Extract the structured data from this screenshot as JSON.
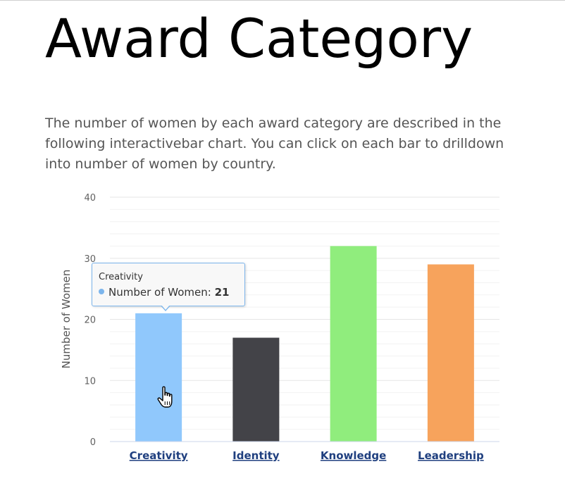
{
  "title": "Award Category",
  "description": "The number of women by each award category are described in the following interactivebar chart. You can click on each bar to drilldown into number of women by country.",
  "chart_data": {
    "type": "bar",
    "categories": [
      "Creativity",
      "Identity",
      "Knowledge",
      "Leadership"
    ],
    "series": [
      {
        "name": "Number of Women",
        "values": [
          21,
          17,
          32,
          29
        ]
      }
    ],
    "bar_colors": [
      "#90c8fc",
      "#434348",
      "#90ed7d",
      "#f7a35c"
    ],
    "ylabel": "Number of Women",
    "xlabel": "",
    "ylim": [
      0,
      40
    ],
    "yticks": [
      0,
      10,
      20,
      30,
      40
    ],
    "grid": true
  },
  "tooltip": {
    "category": "Creativity",
    "series_label": "Number of Women: ",
    "value": "21",
    "dot_color": "#7cb5ec"
  },
  "cursor_icon": "hand-pointer-icon"
}
